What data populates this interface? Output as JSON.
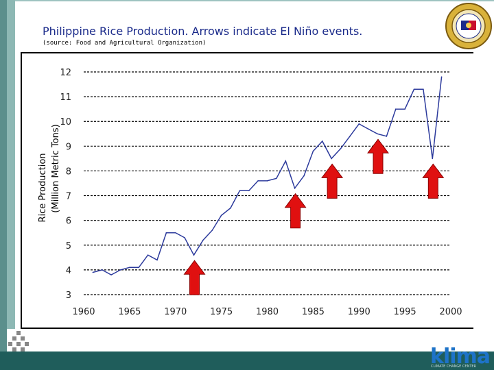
{
  "header": {
    "title": "Philippine Rice Production.  Arrows indicate El Niño events.",
    "source": "(source: Food and Agricultural Organization)"
  },
  "logo": {
    "text": "klima",
    "tagline": "CLIMATE CHANGE CENTER"
  },
  "colors": {
    "title": "#1a2a8a",
    "line": "#2c3a9c",
    "arrow": "#e01010",
    "arrow_outline": "#8a0000",
    "side_bar": "#5b8f8c",
    "bottom_band": "#1f5d5b",
    "logo": "#1e73c8"
  },
  "chart_data": {
    "type": "line",
    "ylabel_line1": "Rice Production",
    "ylabel_line2": "(Million Metric Tons)",
    "xlim": [
      1960,
      2000
    ],
    "ylim": [
      3,
      12
    ],
    "x_ticks": [
      "1960",
      "1965",
      "1970",
      "1975",
      "1980",
      "1985",
      "1990",
      "1995",
      "2000"
    ],
    "y_ticks": [
      "3",
      "4",
      "5",
      "6",
      "7",
      "8",
      "9",
      "10",
      "11",
      "12"
    ],
    "grid": "horizontal dashed",
    "series": [
      {
        "x": [
          1961,
          1962,
          1963,
          1964,
          1965,
          1966,
          1967,
          1968,
          1969,
          1970,
          1971,
          1972,
          1973,
          1974,
          1975,
          1976,
          1977,
          1978,
          1979,
          1980,
          1981,
          1982,
          1983,
          1984,
          1985,
          1986,
          1987,
          1988,
          1989,
          1990,
          1991,
          1992,
          1993,
          1994,
          1995,
          1996,
          1997,
          1998,
          1999
        ],
        "values": [
          3.9,
          4.0,
          3.8,
          4.0,
          4.1,
          4.1,
          4.6,
          4.4,
          5.5,
          5.5,
          5.3,
          4.6,
          5.2,
          5.6,
          6.2,
          6.5,
          7.2,
          7.2,
          7.6,
          7.6,
          7.7,
          8.4,
          7.3,
          7.8,
          8.8,
          9.2,
          8.5,
          8.9,
          9.4,
          9.9,
          9.7,
          9.5,
          9.4,
          10.5,
          10.5,
          11.3,
          11.3,
          8.5,
          11.8
        ]
      }
    ],
    "el_nino_arrows": [
      1972,
      1983,
      1987,
      1992,
      1998
    ]
  }
}
